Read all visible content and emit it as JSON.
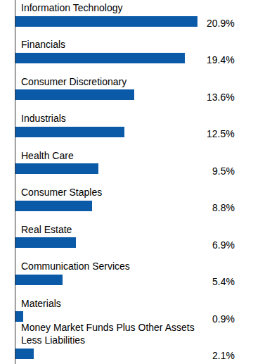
{
  "chart_data": {
    "type": "bar",
    "orientation": "horizontal",
    "categories": [
      "Information Technology",
      "Financials",
      "Consumer Discretionary",
      "Industrials",
      "Health Care",
      "Consumer Staples",
      "Real Estate",
      "Communication Services",
      "Materials",
      "Money Market Funds Plus Other Assets Less Liabilities"
    ],
    "values": [
      20.9,
      19.4,
      13.6,
      12.5,
      9.5,
      8.8,
      6.9,
      5.4,
      0.9,
      2.1
    ],
    "value_labels": [
      "20.9%",
      "19.4%",
      "13.6%",
      "12.5%",
      "9.5%",
      "8.8%",
      "6.9%",
      "5.4%",
      "0.9%",
      "2.1%"
    ],
    "data_labels": true,
    "color": "#0b5aa8",
    "xlim": [
      0,
      25
    ],
    "grid": false,
    "tick_labels": false
  }
}
